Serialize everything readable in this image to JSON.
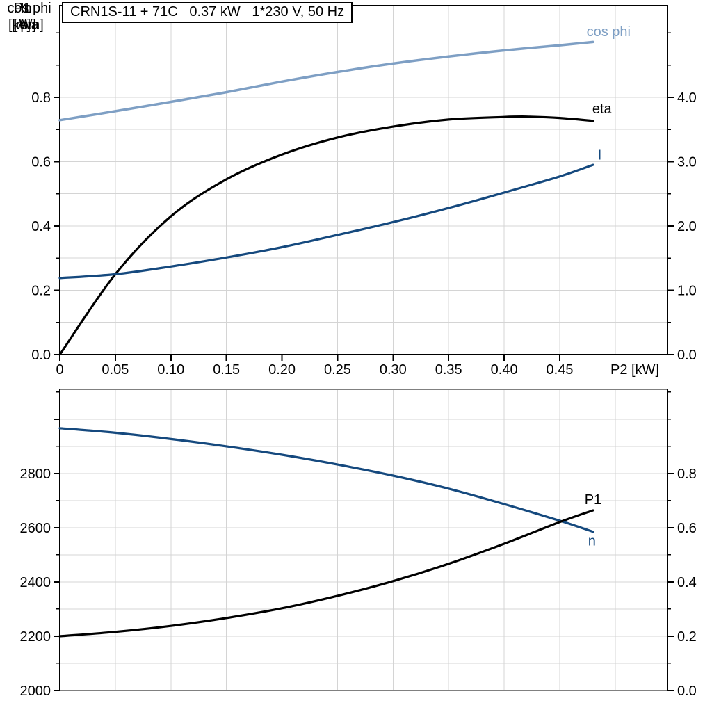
{
  "title_box": {
    "text": "CRN1S-11 + 71C   0.37 kW   1*230 V, 50 Hz"
  },
  "colors": {
    "black": "#000000",
    "dark_blue": "#15497e",
    "light_blue": "#7e9fc4",
    "grid": "#d4d4d4",
    "gray_border": "#808080"
  },
  "chart_data": [
    {
      "type": "line",
      "id": "electrical-curves",
      "y_left": {
        "title_lines": [
          "cos phi",
          "eta"
        ],
        "min": 0,
        "max": 1.0854,
        "minor_step": 0.1,
        "ticks": [
          {
            "v": 0.0,
            "label": "0.0"
          },
          {
            "v": 0.2,
            "label": "0.2"
          },
          {
            "v": 0.4,
            "label": "0.4"
          },
          {
            "v": 0.6,
            "label": "0.6"
          },
          {
            "v": 0.8,
            "label": "0.8"
          }
        ]
      },
      "y_right": {
        "title_lines": [
          "I",
          "[A]"
        ],
        "min": 0,
        "max": 5.427,
        "minor_step": 0.5,
        "ticks": [
          {
            "v": 0.0,
            "label": "0.0"
          },
          {
            "v": 1.0,
            "label": "1.0"
          },
          {
            "v": 2.0,
            "label": "2.0"
          },
          {
            "v": 3.0,
            "label": "3.0"
          },
          {
            "v": 4.0,
            "label": "4.0"
          }
        ]
      },
      "x_axis": {
        "label": "P2 [kW]",
        "min": 0,
        "max": 0.547,
        "grid_step": 0.05,
        "ticks": [
          {
            "v": 0,
            "label": "0"
          },
          {
            "v": 0.05,
            "label": "0.05"
          },
          {
            "v": 0.1,
            "label": "0.10"
          },
          {
            "v": 0.15,
            "label": "0.15"
          },
          {
            "v": 0.2,
            "label": "0.20"
          },
          {
            "v": 0.25,
            "label": "0.25"
          },
          {
            "v": 0.3,
            "label": "0.30"
          },
          {
            "v": 0.35,
            "label": "0.35"
          },
          {
            "v": 0.4,
            "label": "0.40"
          },
          {
            "v": 0.45,
            "label": "0.45"
          }
        ]
      },
      "series": [
        {
          "name": "cos phi",
          "color": "light_blue",
          "axis": "left",
          "width": 3.5,
          "label_at": {
            "x": 0.494,
            "y": 1.005
          },
          "points": [
            [
              0,
              0.729
            ],
            [
              0.05,
              0.757
            ],
            [
              0.1,
              0.786
            ],
            [
              0.15,
              0.816
            ],
            [
              0.2,
              0.849
            ],
            [
              0.25,
              0.879
            ],
            [
              0.3,
              0.905
            ],
            [
              0.35,
              0.927
            ],
            [
              0.4,
              0.946
            ],
            [
              0.45,
              0.962
            ],
            [
              0.48,
              0.972
            ]
          ]
        },
        {
          "name": "eta",
          "color": "black",
          "axis": "left",
          "width": 3.2,
          "label_at": {
            "x": 0.488,
            "y": 0.765
          },
          "points": [
            [
              0,
              0.0
            ],
            [
              0.05,
              0.25
            ],
            [
              0.1,
              0.43
            ],
            [
              0.15,
              0.545
            ],
            [
              0.2,
              0.622
            ],
            [
              0.25,
              0.675
            ],
            [
              0.3,
              0.709
            ],
            [
              0.35,
              0.731
            ],
            [
              0.4,
              0.739
            ],
            [
              0.42,
              0.74
            ],
            [
              0.45,
              0.736
            ],
            [
              0.48,
              0.727
            ]
          ]
        },
        {
          "name": "I",
          "color": "dark_blue",
          "axis": "right",
          "width": 3.2,
          "label_at": {
            "x": 0.486,
            "y": 3.11
          },
          "points": [
            [
              0,
              1.19
            ],
            [
              0.05,
              1.25
            ],
            [
              0.1,
              1.37
            ],
            [
              0.15,
              1.51
            ],
            [
              0.2,
              1.67
            ],
            [
              0.25,
              1.86
            ],
            [
              0.3,
              2.06
            ],
            [
              0.35,
              2.28
            ],
            [
              0.4,
              2.52
            ],
            [
              0.45,
              2.77
            ],
            [
              0.48,
              2.95
            ]
          ]
        }
      ]
    },
    {
      "type": "line",
      "id": "speed-power-curves",
      "y_left": {
        "title_lines": [
          "n",
          "[rpm]"
        ],
        "min": 2000,
        "max": 3110,
        "minor_step": 100,
        "ticks": [
          {
            "v": 2000,
            "label": "2000"
          },
          {
            "v": 2200,
            "label": "2200"
          },
          {
            "v": 2400,
            "label": "2400"
          },
          {
            "v": 2600,
            "label": "2600"
          },
          {
            "v": 2800,
            "label": "2800"
          },
          {
            "v": 3000,
            "label": ""
          }
        ]
      },
      "y_right": {
        "title_lines": [
          "P1",
          "[kW]"
        ],
        "min": 0,
        "max": 1.11,
        "minor_step": 0.1,
        "ticks": [
          {
            "v": 0.0,
            "label": "0.0"
          },
          {
            "v": 0.2,
            "label": "0.2"
          },
          {
            "v": 0.4,
            "label": "0.4"
          },
          {
            "v": 0.6,
            "label": "0.6"
          },
          {
            "v": 0.8,
            "label": "0.8"
          }
        ]
      },
      "x_axis": {
        "label": "",
        "min": 0,
        "max": 0.547,
        "grid_step": 0.05,
        "ticks": []
      },
      "series": [
        {
          "name": "n",
          "color": "dark_blue",
          "axis": "left",
          "width": 3.2,
          "label_at": {
            "x": 0.479,
            "y": 2552
          },
          "points": [
            [
              0,
              2967
            ],
            [
              0.05,
              2950
            ],
            [
              0.1,
              2927
            ],
            [
              0.15,
              2900
            ],
            [
              0.2,
              2869
            ],
            [
              0.25,
              2833
            ],
            [
              0.3,
              2792
            ],
            [
              0.35,
              2744
            ],
            [
              0.4,
              2687
            ],
            [
              0.45,
              2626
            ],
            [
              0.48,
              2585
            ]
          ]
        },
        {
          "name": "P1",
          "color": "black",
          "axis": "right",
          "width": 3.2,
          "label_at": {
            "x": 0.48,
            "y": 0.705
          },
          "points": [
            [
              0,
              0.2
            ],
            [
              0.05,
              0.216
            ],
            [
              0.1,
              0.238
            ],
            [
              0.15,
              0.267
            ],
            [
              0.2,
              0.303
            ],
            [
              0.25,
              0.349
            ],
            [
              0.3,
              0.403
            ],
            [
              0.35,
              0.467
            ],
            [
              0.4,
              0.541
            ],
            [
              0.45,
              0.621
            ],
            [
              0.48,
              0.664
            ]
          ]
        }
      ]
    }
  ]
}
